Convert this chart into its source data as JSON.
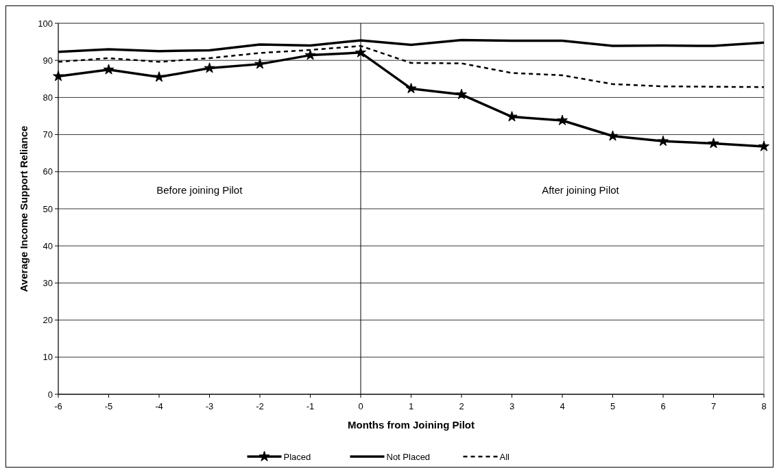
{
  "chart_data": {
    "type": "line",
    "xlabel": "Months from Joining Pilot",
    "ylabel": "Average Income Support Reliance",
    "x": [
      -6,
      -5,
      -4,
      -3,
      -2,
      -1,
      0,
      1,
      2,
      3,
      4,
      5,
      6,
      7,
      8
    ],
    "xlim": [
      -6,
      8
    ],
    "xticks": [
      -6,
      -5,
      -4,
      -3,
      -2,
      -1,
      0,
      1,
      2,
      3,
      4,
      5,
      6,
      7,
      8
    ],
    "ylim": [
      0,
      100
    ],
    "yticks": [
      0,
      10,
      20,
      30,
      40,
      50,
      60,
      70,
      80,
      90,
      100
    ],
    "grid": "y",
    "legend": "bottom",
    "series": [
      {
        "name": "Placed",
        "color": "#000000",
        "marker": "star",
        "line_style": "solid",
        "values": [
          85.7,
          87.5,
          85.5,
          87.9,
          89.0,
          91.4,
          92.1,
          82.4,
          80.8,
          74.8,
          73.8,
          69.6,
          68.2,
          67.6,
          66.8
        ]
      },
      {
        "name": "Not Placed",
        "color": "#000000",
        "marker": "none",
        "line_style": "solid",
        "values": [
          92.3,
          93.0,
          92.5,
          92.7,
          94.3,
          94.0,
          95.4,
          94.2,
          95.5,
          95.3,
          95.3,
          93.9,
          94.0,
          93.9,
          94.8
        ]
      },
      {
        "name": "All",
        "color": "#000000",
        "marker": "none",
        "line_style": "dashed",
        "values": [
          89.6,
          90.6,
          89.6,
          90.6,
          92.0,
          92.8,
          93.9,
          89.3,
          89.2,
          86.6,
          86.0,
          83.6,
          83.0,
          82.9,
          82.8
        ]
      }
    ],
    "ref_lines": [
      {
        "axis": "x",
        "value": 0,
        "color": "#000000"
      }
    ],
    "annotations": [
      "Before joining Pilot",
      "After joining Pilot"
    ]
  }
}
